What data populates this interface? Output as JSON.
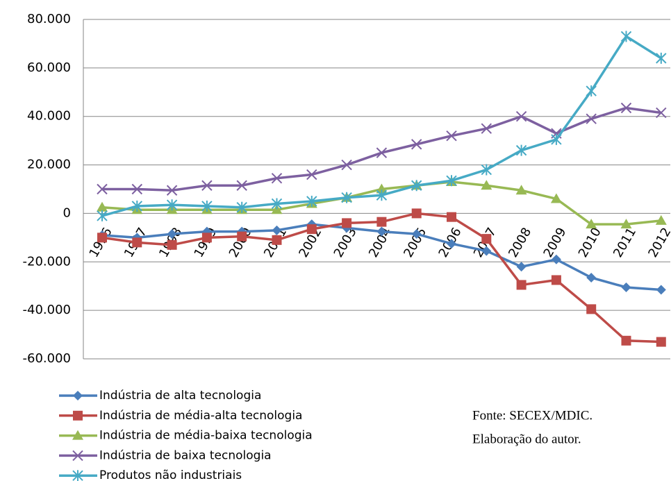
{
  "chart_data": {
    "type": "line",
    "categories": [
      "1996",
      "1997",
      "1998",
      "1999",
      "2000",
      "2001",
      "2002",
      "2003",
      "2004",
      "2005",
      "2006",
      "2007",
      "2008",
      "2009",
      "2010",
      "2011",
      "2012"
    ],
    "series": [
      {
        "name": "Indústria de alta tecnologia",
        "color": "#4a7ebb",
        "marker": "diamond",
        "values": [
          -9000,
          -10000,
          -8500,
          -7500,
          -7500,
          -7000,
          -4500,
          -6000,
          -7500,
          -8500,
          -12500,
          -15500,
          -22000,
          -19000,
          -26500,
          -30500,
          -31500
        ]
      },
      {
        "name": "Indústria de média-alta tecnologia",
        "color": "#be4b48",
        "marker": "square",
        "values": [
          -10000,
          -12000,
          -13000,
          -10000,
          -9500,
          -11000,
          -6500,
          -4000,
          -3500,
          0,
          -1500,
          -10500,
          -29500,
          -27500,
          -39500,
          -52500,
          -53000
        ]
      },
      {
        "name": "Indústria de média-baixa tecnologia",
        "color": "#98b954",
        "marker": "triangle",
        "values": [
          2500,
          1500,
          1500,
          1500,
          1500,
          1500,
          4000,
          6500,
          10000,
          11500,
          13000,
          11500,
          9500,
          6000,
          -4500,
          -4500,
          -3000
        ]
      },
      {
        "name": "Indústria de baixa tecnologia",
        "color": "#7d60a0",
        "marker": "x",
        "values": [
          10000,
          10000,
          9500,
          11500,
          11500,
          14500,
          16000,
          20000,
          25000,
          28500,
          32000,
          35000,
          40000,
          33000,
          39000,
          43500,
          41500
        ]
      },
      {
        "name": "Produtos não industriais",
        "color": "#46aac5",
        "marker": "star",
        "values": [
          -1000,
          3000,
          3500,
          3000,
          2500,
          4000,
          5000,
          6500,
          7500,
          11500,
          13500,
          18000,
          26000,
          30500,
          50500,
          73000,
          64000
        ]
      }
    ],
    "ylim": [
      -60000,
      80000
    ],
    "yticks": [
      {
        "value": -60000,
        "label": "-60.000"
      },
      {
        "value": -40000,
        "label": "-40.000"
      },
      {
        "value": -20000,
        "label": "-20.000"
      },
      0,
      {
        "value": 20000,
        "label": "20.000"
      },
      {
        "value": 40000,
        "label": "40.000"
      },
      {
        "value": 60000,
        "label": "60.000"
      },
      {
        "value": 80000,
        "label": "80.000"
      }
    ],
    "grid": true,
    "annotations": [
      "Fonte: SECEX/MDIC.",
      "Elaboração do autor."
    ]
  }
}
